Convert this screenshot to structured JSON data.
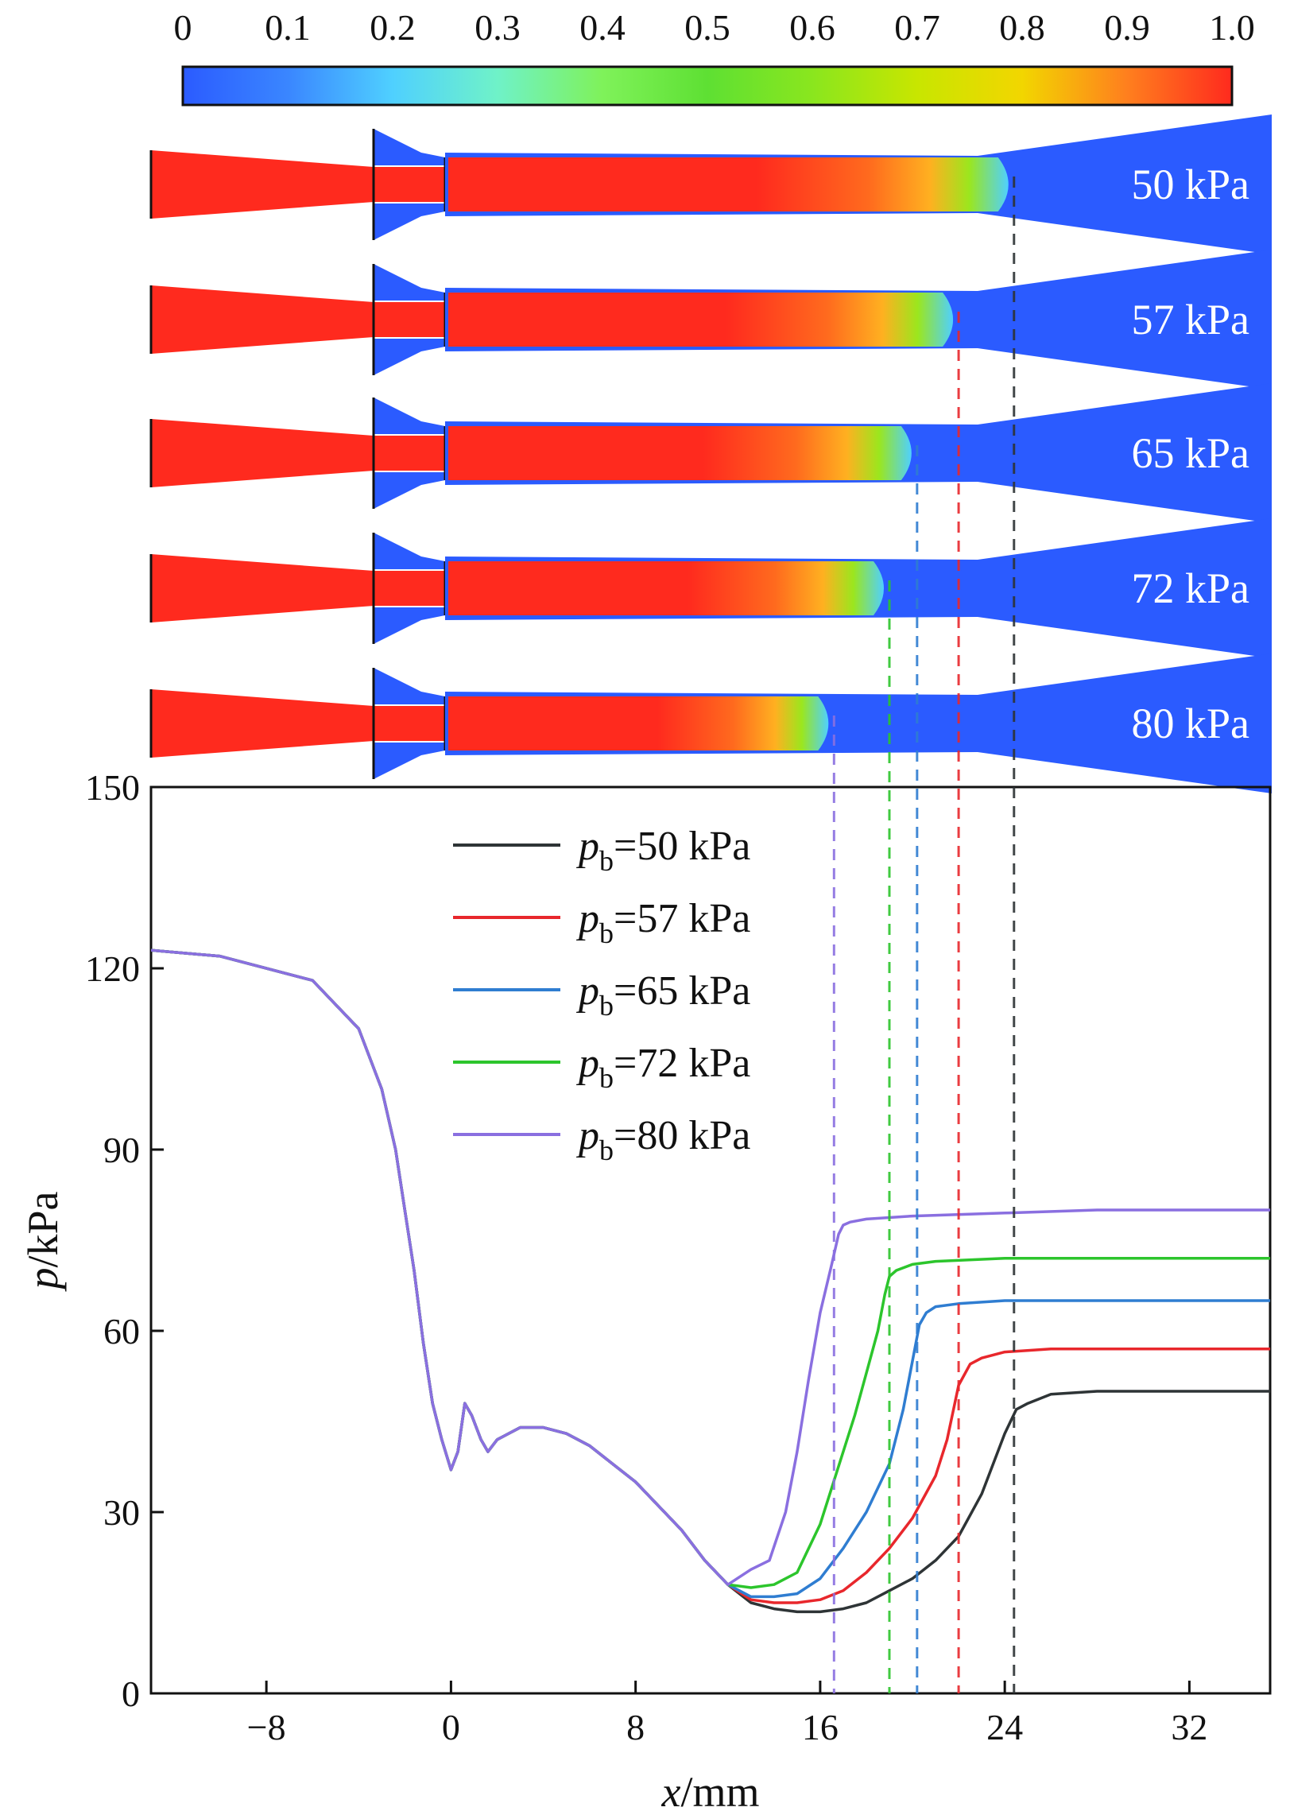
{
  "colorbar": {
    "ticks": [
      "0",
      "0.1",
      "0.2",
      "0.3",
      "0.4",
      "0.5",
      "0.6",
      "0.7",
      "0.8",
      "0.9",
      "1.0"
    ],
    "stops": [
      "#2b5bff",
      "#3a86ff",
      "#4fd0ff",
      "#6ff2c8",
      "#7ff25a",
      "#5ee033",
      "#8ae61e",
      "#c8e600",
      "#f2d600",
      "#ff7f1e",
      "#ff2a1e"
    ]
  },
  "contours": [
    {
      "label": "50 kPa",
      "shock_x": 24.4
    },
    {
      "label": "57 kPa",
      "shock_x": 22.0
    },
    {
      "label": "65 kPa",
      "shock_x": 20.2
    },
    {
      "label": "72 kPa",
      "shock_x": 19.0
    },
    {
      "label": "80 kPa",
      "shock_x": 16.6
    }
  ],
  "chart_data": {
    "type": "line",
    "xlabel_var": "x",
    "xlabel_unit": "/mm",
    "ylabel_var": "p",
    "ylabel_unit": "/kPa",
    "xlim": [
      -13,
      35.5
    ],
    "ylim": [
      0,
      150
    ],
    "xticks": [
      -8,
      0,
      8,
      16,
      24,
      32
    ],
    "yticks": [
      0,
      30,
      60,
      90,
      120,
      150
    ],
    "xtick_labels": [
      "−8",
      "0",
      "8",
      "16",
      "24",
      "32"
    ],
    "ytick_labels": [
      "0",
      "30",
      "60",
      "90",
      "120",
      "150"
    ],
    "legend_position": "top-center",
    "common_x": [
      -13,
      -10,
      -6,
      -4,
      -3,
      -2.4,
      -2,
      -1.6,
      -1.2,
      -0.8,
      -0.4,
      0,
      0.3,
      0.6,
      0.9,
      1.3,
      1.6,
      2,
      3,
      4,
      5,
      6,
      7,
      8,
      9,
      10,
      11,
      12
    ],
    "common_y": [
      123,
      122,
      118,
      110,
      100,
      90,
      80,
      70,
      58,
      48,
      42,
      37,
      40,
      48,
      46,
      42,
      40,
      42,
      44,
      44,
      43,
      41,
      38,
      35,
      31,
      27,
      22,
      18
    ],
    "series": [
      {
        "legend_symbol": "p",
        "legend_subscript": "b",
        "legend_value": "=50 kPa",
        "color": "#2e3436",
        "x": [
          13,
          14,
          15,
          16,
          17,
          18,
          19,
          20,
          21,
          22,
          23,
          24,
          24.5,
          25,
          26,
          28,
          30,
          35.5
        ],
        "y": [
          15,
          14,
          13.5,
          13.5,
          14,
          15,
          17,
          19,
          22,
          26,
          33,
          43,
          47,
          48,
          49.5,
          50,
          50,
          50
        ]
      },
      {
        "legend_symbol": "p",
        "legend_subscript": "b",
        "legend_value": "=57 kPa",
        "color": "#e8272c",
        "x": [
          13,
          14,
          15,
          16,
          17,
          18,
          19,
          20,
          21,
          21.5,
          22,
          22.5,
          23,
          24,
          26,
          30,
          35.5
        ],
        "y": [
          15.5,
          15,
          15,
          15.5,
          17,
          20,
          24,
          29,
          36,
          42,
          51,
          54.5,
          55.5,
          56.5,
          57,
          57,
          57
        ]
      },
      {
        "legend_symbol": "p",
        "legend_subscript": "b",
        "legend_value": "=65 kPa",
        "color": "#2f7dd1",
        "x": [
          13,
          14,
          15,
          16,
          17,
          18,
          19,
          19.6,
          20,
          20.3,
          20.6,
          21,
          22,
          24,
          28,
          35.5
        ],
        "y": [
          16,
          16,
          16.5,
          19,
          24,
          30,
          38,
          47,
          55,
          61,
          63,
          64,
          64.5,
          65,
          65,
          65
        ]
      },
      {
        "legend_symbol": "p",
        "legend_subscript": "b",
        "legend_value": "=72 kPa",
        "color": "#2cc52c",
        "x": [
          13,
          14,
          15,
          16,
          17,
          17.5,
          18,
          18.5,
          18.8,
          19,
          19.3,
          20,
          21,
          24,
          28,
          35.5
        ],
        "y": [
          17.5,
          18,
          20,
          28,
          40,
          46,
          53,
          60,
          66,
          69,
          70,
          71,
          71.5,
          72,
          72,
          72
        ]
      },
      {
        "legend_symbol": "p",
        "legend_subscript": "b",
        "legend_value": "=80 kPa",
        "color": "#8a6fe0",
        "x": [
          13,
          13.8,
          14.5,
          15,
          15.5,
          16,
          16.5,
          16.8,
          17,
          17.3,
          18,
          20,
          24,
          28,
          35.5
        ],
        "y": [
          20.5,
          22,
          30,
          40,
          52,
          63,
          71,
          76,
          77.5,
          78,
          78.5,
          79,
          79.5,
          80,
          80
        ]
      }
    ]
  }
}
